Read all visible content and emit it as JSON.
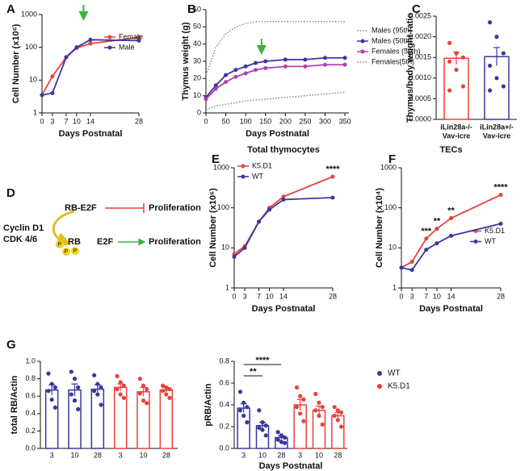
{
  "chart_data": [
    {
      "type": "line",
      "panel": "A",
      "log_y": true,
      "x": [
        0,
        3,
        7,
        10,
        14,
        28
      ],
      "xlim": [
        0,
        28
      ],
      "xticks": [
        0,
        3,
        7,
        10,
        14,
        28
      ],
      "ylim": [
        1,
        1000
      ],
      "yticks": [
        1,
        10,
        100,
        1000
      ],
      "xlabel": "Days Postnatal",
      "ylabel": "Cell Number (x10⁶)",
      "legend": "upper right",
      "arrow_x": 12,
      "series": [
        {
          "name": "Female",
          "color": "#e8413c",
          "values": [
            3.5,
            13,
            50,
            95,
            130,
            200
          ]
        },
        {
          "name": "Male",
          "color": "#3a37a0",
          "values": [
            3.5,
            4,
            50,
            100,
            170,
            160
          ]
        }
      ]
    },
    {
      "type": "line",
      "panel": "B",
      "x": [
        0,
        25,
        50,
        75,
        100,
        125,
        150,
        200,
        250,
        300,
        350
      ],
      "xlim": [
        0,
        360
      ],
      "xticks": [
        0,
        50,
        100,
        150,
        200,
        250,
        300,
        350
      ],
      "ylim": [
        0,
        60
      ],
      "yticks": [
        0,
        10,
        20,
        30,
        40,
        50,
        60
      ],
      "xlabel": "Days Postnatal",
      "ylabel": "Thymus weight (g)",
      "legend": "right",
      "arrow_x": 140,
      "series": [
        {
          "name": "Males (95th)",
          "color": "#888888",
          "dashed": true,
          "values": [
            22,
            38,
            46,
            50,
            52,
            53,
            53,
            53,
            53,
            53,
            53
          ]
        },
        {
          "name": "Males (50th)",
          "color": "#3a37a0",
          "values": [
            9,
            16,
            22,
            25,
            27,
            29,
            30,
            31,
            31,
            32,
            32
          ]
        },
        {
          "name": "Females (50th)",
          "color": "#b040b0",
          "values": [
            8,
            14,
            18,
            21,
            23,
            25,
            26,
            27,
            27,
            28,
            28
          ]
        },
        {
          "name": "Females(5th)",
          "color": "#888888",
          "dashed": true,
          "values": [
            2,
            4,
            5,
            6,
            7,
            7.5,
            8,
            9,
            10,
            11,
            12
          ]
        }
      ]
    },
    {
      "type": "bar",
      "panel": "C",
      "ylabel": "Thymus/body weight ratio",
      "ylim": [
        0,
        0.0025
      ],
      "yticks": [
        {
          "value": 0,
          "label": "0.0000"
        },
        {
          "value": 0.0005,
          "label": "0.0005"
        },
        {
          "value": 0.001,
          "label": "0.0010"
        },
        {
          "value": 0.0015,
          "label": "0.0015"
        },
        {
          "value": 0.002,
          "label": "0.0020"
        },
        {
          "value": 0.0025,
          "label": "0.0025"
        }
      ],
      "categories": [
        [
          "iLin28a-/-",
          "Vav-icre"
        ],
        [
          "iLin28a+/-",
          "Vav-icre"
        ]
      ],
      "series": [
        {
          "colors": [
            "#e8413c",
            "#3a37a0"
          ],
          "values": [
            0.00148,
            0.00152
          ],
          "errors": [
            0.00015,
            0.00022
          ],
          "points": [
            [
              0.00185,
              0.0016,
              0.0015,
              0.0014,
              0.0012,
              0.0008,
              0.0007
            ],
            [
              0.00235,
              0.002,
              0.0016,
              0.0013,
              0.001,
              0.0008,
              0.0007
            ]
          ]
        }
      ]
    },
    {
      "type": "line",
      "panel": "E",
      "title": "Total thymocytes",
      "log_y": true,
      "x": [
        0,
        3,
        7,
        10,
        14,
        28
      ],
      "xlim": [
        0,
        28
      ],
      "xticks": [
        0,
        3,
        7,
        10,
        14,
        28
      ],
      "ylim": [
        1,
        1000
      ],
      "yticks": [
        1,
        10,
        100,
        1000
      ],
      "xlabel": "Days Postnatal",
      "ylabel": "Cell Number (x10⁶)",
      "legend": "upper left",
      "annotations": [
        {
          "x": 28,
          "text": "****"
        }
      ],
      "series": [
        {
          "name": "K5.D1",
          "color": "#e8413c",
          "values": [
            7,
            11,
            45,
            100,
            190,
            600
          ]
        },
        {
          "name": "WT",
          "color": "#3a37a0",
          "values": [
            6,
            10,
            45,
            90,
            160,
            180
          ]
        }
      ]
    },
    {
      "type": "line",
      "panel": "F",
      "title": "TECs",
      "log_y": true,
      "x": [
        0,
        3,
        7,
        10,
        14,
        28
      ],
      "xlim": [
        0,
        28
      ],
      "xticks": [
        0,
        3,
        7,
        10,
        14,
        28
      ],
      "ylim": [
        1,
        1000
      ],
      "yticks": [
        1,
        10,
        100,
        1000
      ],
      "xlabel": "Days Postnatal",
      "ylabel": "Cell Number (x10⁴)",
      "legend": "center right",
      "annotations": [
        {
          "x": 7,
          "text": "***"
        },
        {
          "x": 10,
          "text": "**"
        },
        {
          "x": 14,
          "text": "**"
        },
        {
          "x": 28,
          "text": "****"
        }
      ],
      "series": [
        {
          "name": "K5.D1",
          "color": "#e8413c",
          "values": [
            3.2,
            4.5,
            17,
            30,
            55,
            210
          ]
        },
        {
          "name": "WT",
          "color": "#3a37a0",
          "values": [
            3.2,
            2.8,
            9,
            13,
            20,
            40
          ]
        }
      ]
    },
    {
      "type": "bar",
      "panel": "G",
      "ylabel": "total RB/Actin",
      "ylim": [
        0,
        1
      ],
      "yticks": [
        {
          "value": 0,
          "label": "0.0"
        },
        0.2,
        0.4,
        0.6,
        0.8,
        {
          "value": 1,
          "label": "1.0"
        }
      ],
      "categories": [
        "3",
        "10",
        "28"
      ],
      "series": [
        {
          "color": "#3a37a0",
          "values": [
            0.67,
            0.67,
            0.68
          ],
          "errors": [
            0.06,
            0.07,
            0.05
          ],
          "points": [
            [
              0.86,
              0.74,
              0.7,
              0.66,
              0.56,
              0.47
            ],
            [
              0.88,
              0.8,
              0.7,
              0.62,
              0.55,
              0.45
            ],
            [
              0.84,
              0.74,
              0.7,
              0.66,
              0.62,
              0.5
            ]
          ]
        },
        {
          "color": "#e8413c",
          "values": [
            0.7,
            0.65,
            0.67
          ],
          "errors": [
            0.04,
            0.05,
            0.03
          ],
          "points": [
            [
              0.83,
              0.76,
              0.72,
              0.68,
              0.62,
              0.58
            ],
            [
              0.8,
              0.72,
              0.68,
              0.63,
              0.55,
              0.52
            ],
            [
              0.72,
              0.7,
              0.68,
              0.66,
              0.62,
              0.58
            ]
          ]
        }
      ]
    },
    {
      "type": "bar",
      "ylabel": "pRB/Actin",
      "xlabel": "Days Postnatal",
      "ylim": [
        0,
        0.8
      ],
      "legend": "right",
      "yticks": [
        {
          "value": 0,
          "label": "0.0"
        },
        0.2,
        0.4,
        0.6,
        0.8
      ],
      "brackets": [
        "****",
        "**"
      ],
      "categories": [
        "3",
        "10",
        "28"
      ],
      "series": [
        {
          "name": "WT",
          "color": "#3a37a0",
          "values": [
            0.37,
            0.21,
            0.1
          ],
          "errors": [
            0.04,
            0.03,
            0.015
          ],
          "points": [
            [
              0.52,
              0.42,
              0.38,
              0.35,
              0.3,
              0.24
            ],
            [
              0.35,
              0.24,
              0.21,
              0.19,
              0.17,
              0.12
            ],
            [
              0.15,
              0.12,
              0.1,
              0.08,
              0.06,
              0.05
            ]
          ]
        },
        {
          "name": "K5.D1",
          "color": "#e8413c",
          "values": [
            0.4,
            0.35,
            0.3
          ],
          "errors": [
            0.05,
            0.04,
            0.03
          ],
          "points": [
            [
              0.56,
              0.48,
              0.45,
              0.38,
              0.32,
              0.25
            ],
            [
              0.5,
              0.42,
              0.38,
              0.35,
              0.3,
              0.22
            ],
            [
              0.38,
              0.35,
              0.33,
              0.3,
              0.26,
              0.2
            ]
          ]
        }
      ]
    }
  ],
  "diagram": {
    "panel": "D",
    "kinase": [
      "Cyclin D1",
      "CDK 4/6"
    ],
    "complex": "RB-E2F",
    "outcome_1": "Proliferation",
    "rb": "RB",
    "phospho": "P",
    "e2f": "E2F",
    "outcome_2": "Proliferation"
  }
}
